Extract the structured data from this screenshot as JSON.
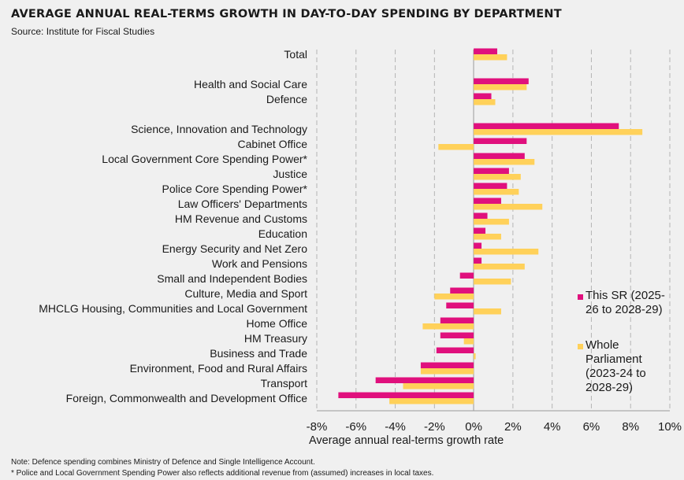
{
  "title": "AVERAGE ANNUAL REAL-TERMS GROWTH IN DAY-TO-DAY SPENDING BY DEPARTMENT",
  "subtitle": "Source: Institute for Fiscal Studies",
  "notes": [
    "Note: Defence spending combines Ministry of Defence and Single Intelligence Account.",
    "* Police and Local Government Spending Power also reflects additional revenue from (assumed) increases in local taxes."
  ],
  "chart_data": {
    "type": "bar",
    "orientation": "horizontal",
    "title": "AVERAGE ANNUAL REAL-TERMS GROWTH IN DAY-TO-DAY SPENDING BY DEPARTMENT",
    "xlabel": "Average annual real-terms growth rate",
    "ylabel": "",
    "xlim": [
      -8,
      10
    ],
    "xticks": [
      "-8%",
      "-6%",
      "-4%",
      "-2%",
      "0%",
      "2%",
      "4%",
      "6%",
      "8%",
      "10%"
    ],
    "grid": true,
    "legend_position": "right",
    "categories": [
      "Total",
      "Health and Social Care",
      "Defence",
      "Science, Innovation and Technology",
      "Cabinet Office",
      "Local Government Core Spending Power*",
      "Justice",
      "Police Core Spending Power*",
      "Law Officers' Departments",
      "HM Revenue and Customs",
      "Education",
      "Energy Security and Net Zero",
      "Work and Pensions",
      "Small and Independent Bodies",
      "Culture, Media and Sport",
      "MHCLG Housing, Communities and Local Government",
      "Home Office",
      "HM Treasury",
      "Business and Trade",
      "Environment, Food and Rural Affairs",
      "Transport",
      "Foreign, Commonwealth and Development Office"
    ],
    "series": [
      {
        "name": "This SR (2025-26 to 2028-29)",
        "color": "#e0107d",
        "values": [
          1.2,
          2.8,
          0.9,
          7.4,
          2.7,
          2.6,
          1.8,
          1.7,
          1.4,
          0.7,
          0.6,
          0.4,
          0.4,
          -0.7,
          -1.2,
          -1.4,
          -1.7,
          -1.7,
          -1.9,
          -2.7,
          -5.0,
          -6.9
        ]
      },
      {
        "name": "Whole Parliament (2023-24 to 2028-29)",
        "color": "#ffd15a",
        "values": [
          1.7,
          2.7,
          1.1,
          8.6,
          -1.8,
          3.1,
          2.4,
          2.3,
          3.5,
          1.8,
          1.4,
          3.3,
          2.6,
          1.9,
          -2.0,
          1.4,
          -2.6,
          -0.5,
          0.1,
          -2.7,
          -3.6,
          -4.3
        ]
      }
    ]
  }
}
